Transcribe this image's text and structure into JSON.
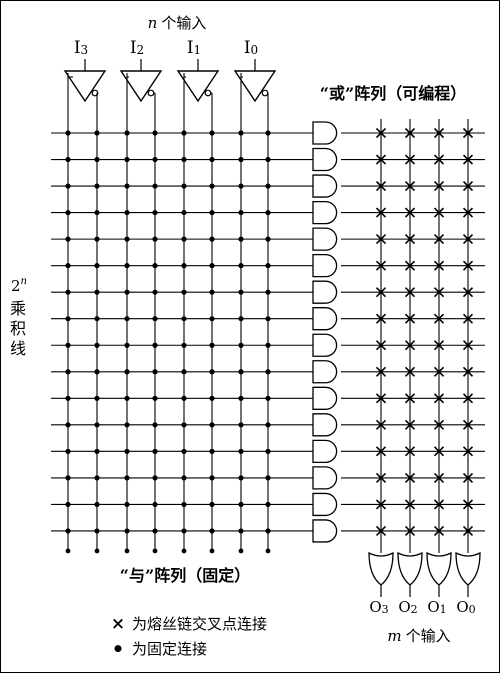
{
  "inputs": {
    "caption_var": "n",
    "caption_text": "个输入",
    "labels": [
      {
        "base": "I",
        "sub": "3"
      },
      {
        "base": "I",
        "sub": "2"
      },
      {
        "base": "I",
        "sub": "1"
      },
      {
        "base": "I",
        "sub": "0"
      }
    ]
  },
  "or_array": {
    "title": "“或”阵列（可编程）"
  },
  "and_array": {
    "title": "“与”阵列（固定）"
  },
  "product_lines": {
    "base": "2",
    "exp": "n",
    "text": [
      "乘",
      "积",
      "线"
    ]
  },
  "outputs": {
    "labels": [
      {
        "base": "O",
        "sub": "3"
      },
      {
        "base": "O",
        "sub": "2"
      },
      {
        "base": "O",
        "sub": "1"
      },
      {
        "base": "O",
        "sub": "0"
      }
    ],
    "caption_var": "m",
    "caption_text": "个输入"
  },
  "legend": {
    "fuse_symbol": "×",
    "fuse_text": "为熔丝链交叉点连接",
    "fixed_symbol": "•",
    "fixed_text": "为固定连接"
  },
  "row_count": 16,
  "or_columns": 4,
  "input_columns": 8
}
